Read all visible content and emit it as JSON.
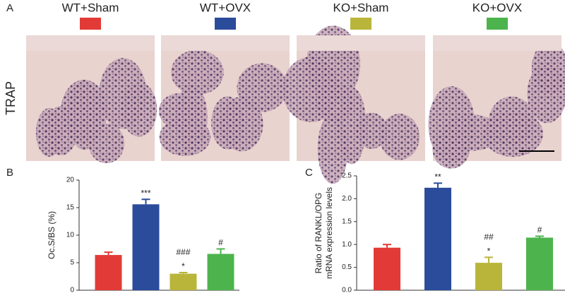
{
  "panel_labels": [
    "A",
    "B",
    "C"
  ],
  "groups": [
    {
      "name": "WT+Sham",
      "color": "#e23b37"
    },
    {
      "name": "WT+OVX",
      "color": "#2b4c9b"
    },
    {
      "name": "KO+Sham",
      "color": "#b9b53b"
    },
    {
      "name": "KO+OVX",
      "color": "#4db44d"
    }
  ],
  "image_row_label": "TRAP",
  "chart_data": [
    {
      "type": "bar",
      "ylabel": [
        "Oc.S/BS (%)"
      ],
      "values": [
        6.4,
        15.6,
        3.0,
        6.6
      ],
      "errors": [
        0.5,
        0.9,
        0.2,
        0.9
      ],
      "colors": [
        "#e23b37",
        "#2b4c9b",
        "#b9b53b",
        "#4db44d"
      ],
      "annotations": [
        null,
        [
          "***"
        ],
        [
          "###",
          "*"
        ],
        [
          "#"
        ]
      ],
      "ylim": [
        0,
        20
      ],
      "yticks": [
        0,
        5,
        10,
        15,
        20
      ]
    },
    {
      "type": "bar",
      "ylabel": [
        "Ratio of RANKL/OPG",
        "mRNA expression levels"
      ],
      "values": [
        0.93,
        2.24,
        0.6,
        1.15
      ],
      "errors": [
        0.07,
        0.1,
        0.12,
        0.03
      ],
      "colors": [
        "#e23b37",
        "#2b4c9b",
        "#b9b53b",
        "#4db44d"
      ],
      "annotations": [
        null,
        [
          "**"
        ],
        [
          "##",
          "*"
        ],
        [
          "#"
        ]
      ],
      "ylim": [
        0,
        2.5
      ],
      "yticks": [
        {
          "value": 0,
          "label": "0.0"
        },
        0.5,
        {
          "value": 1,
          "label": "1.0"
        },
        1.5,
        {
          "value": 2,
          "label": "2.0"
        },
        2.5
      ]
    }
  ]
}
